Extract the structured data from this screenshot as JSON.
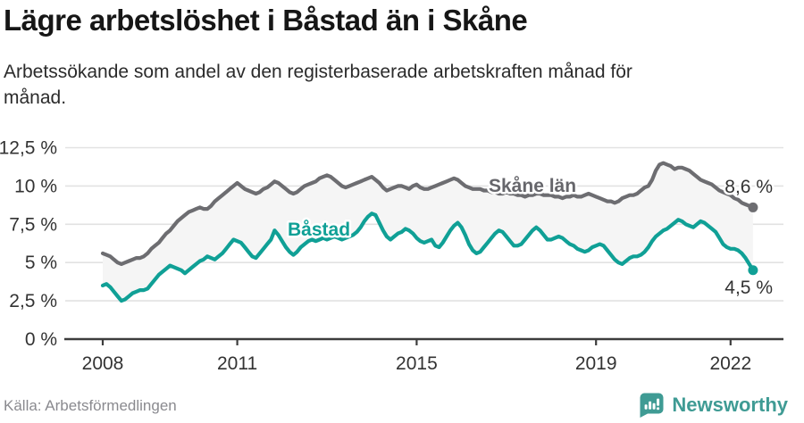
{
  "header": {
    "title": "Lägre arbetslöshet i Båstad än i Skåne",
    "subtitle": "Arbetssökande som andel av den registerbaserade arbetskraften månad för månad.",
    "subtitle_lines": [
      "Arbetssökande som andel av den registerbaserade arbetskraften månad för",
      "månad."
    ]
  },
  "footer": {
    "source": "Källa: Arbetsförmedlingen",
    "brand": "Newsworthy",
    "brand_icon": "bar-chart-speech-bubble-icon"
  },
  "colors": {
    "title_text": "#161616",
    "body_text": "#2b2b2b",
    "tick_text": "#333333",
    "grid": "#e2e2e2",
    "axis": "#3d3d3d",
    "band_fill": "#f5f5f5",
    "skane_gray": "#6d6d71",
    "bastad_teal": "#10a096",
    "end_label_text": "#333333",
    "source_text": "#8a8a8f",
    "brand_teal": "#3f9b94"
  },
  "chart_data": {
    "type": "line",
    "unit": "%",
    "frequency": "monthly",
    "x_range": {
      "start": "2008-01",
      "end": "2022-07"
    },
    "x_tick_labels": [
      "2008",
      "2011",
      "2015",
      "2019",
      "2022"
    ],
    "x_tick_years": [
      2008,
      2011,
      2015,
      2019,
      2022
    ],
    "y_tick_labels": [
      "0 %",
      "2,5 %",
      "5 %",
      "7,5 %",
      "10 %",
      "12,5 %"
    ],
    "y_tick_values": [
      0,
      2.5,
      5,
      7.5,
      10,
      12.5
    ],
    "ylim": [
      0,
      13
    ],
    "grid": "horizontal",
    "legend_position": "inline-annotations",
    "band_between_series": true,
    "series": [
      {
        "name": "Skåne län",
        "color": "#6d6d71",
        "end_value": 8.6,
        "end_label": "8,6 %",
        "values": [
          5.6,
          5.5,
          5.4,
          5.2,
          5.0,
          4.9,
          5.0,
          5.1,
          5.2,
          5.3,
          5.3,
          5.4,
          5.6,
          5.9,
          6.1,
          6.3,
          6.6,
          6.9,
          7.1,
          7.4,
          7.7,
          7.9,
          8.1,
          8.3,
          8.4,
          8.5,
          8.6,
          8.5,
          8.5,
          8.7,
          9.0,
          9.2,
          9.4,
          9.6,
          9.8,
          10.0,
          10.2,
          10.0,
          9.8,
          9.7,
          9.6,
          9.5,
          9.6,
          9.8,
          9.9,
          10.1,
          10.3,
          10.2,
          10.0,
          9.8,
          9.6,
          9.5,
          9.6,
          9.8,
          10.0,
          10.1,
          10.2,
          10.3,
          10.5,
          10.6,
          10.7,
          10.6,
          10.4,
          10.2,
          10.0,
          9.9,
          10.0,
          10.1,
          10.2,
          10.3,
          10.4,
          10.5,
          10.6,
          10.4,
          10.2,
          9.9,
          9.7,
          9.8,
          9.9,
          10.0,
          10.0,
          9.9,
          9.8,
          10.0,
          10.1,
          9.9,
          9.8,
          9.8,
          9.9,
          10.0,
          10.1,
          10.2,
          10.3,
          10.4,
          10.5,
          10.4,
          10.2,
          10.0,
          9.9,
          9.8,
          9.8,
          9.8,
          9.7,
          9.7,
          9.6,
          9.6,
          9.5,
          9.5,
          9.6,
          9.5,
          9.5,
          9.4,
          9.4,
          9.3,
          9.4,
          9.4,
          9.5,
          9.5,
          9.4,
          9.4,
          9.4,
          9.3,
          9.3,
          9.2,
          9.3,
          9.3,
          9.4,
          9.3,
          9.3,
          9.4,
          9.5,
          9.4,
          9.3,
          9.2,
          9.1,
          9.0,
          9.0,
          8.9,
          9.0,
          9.2,
          9.3,
          9.4,
          9.4,
          9.5,
          9.7,
          9.9,
          10.0,
          10.4,
          11.0,
          11.4,
          11.5,
          11.4,
          11.3,
          11.1,
          11.2,
          11.2,
          11.1,
          11.0,
          10.8,
          10.6,
          10.4,
          10.3,
          10.2,
          10.1,
          9.9,
          9.7,
          9.6,
          9.5,
          9.4,
          9.2,
          9.1,
          8.9,
          8.8,
          8.7,
          8.6
        ]
      },
      {
        "name": "Båstad",
        "color": "#10a096",
        "end_value": 4.5,
        "end_label": "4,5 %",
        "values": [
          3.5,
          3.6,
          3.4,
          3.1,
          2.8,
          2.5,
          2.6,
          2.8,
          3.0,
          3.1,
          3.2,
          3.2,
          3.3,
          3.6,
          3.9,
          4.2,
          4.4,
          4.6,
          4.8,
          4.7,
          4.6,
          4.5,
          4.3,
          4.5,
          4.7,
          4.9,
          5.1,
          5.2,
          5.4,
          5.3,
          5.2,
          5.4,
          5.6,
          5.9,
          6.2,
          6.5,
          6.4,
          6.3,
          6.0,
          5.7,
          5.4,
          5.3,
          5.6,
          5.9,
          6.2,
          6.5,
          7.1,
          6.8,
          6.4,
          6.0,
          5.7,
          5.5,
          5.7,
          6.0,
          6.2,
          6.4,
          6.5,
          6.4,
          6.5,
          6.6,
          6.5,
          6.6,
          6.7,
          6.6,
          6.5,
          6.6,
          6.7,
          6.8,
          7.0,
          7.3,
          7.7,
          8.0,
          8.2,
          8.1,
          7.6,
          7.1,
          6.7,
          6.5,
          6.7,
          6.9,
          7.0,
          7.2,
          7.1,
          6.9,
          6.6,
          6.4,
          6.3,
          6.4,
          6.5,
          6.1,
          6.0,
          6.3,
          6.7,
          7.1,
          7.4,
          7.6,
          7.3,
          6.8,
          6.2,
          5.8,
          5.6,
          5.7,
          6.0,
          6.3,
          6.6,
          6.9,
          7.1,
          7.0,
          6.7,
          6.4,
          6.1,
          6.1,
          6.2,
          6.5,
          6.8,
          7.1,
          7.3,
          7.1,
          6.8,
          6.5,
          6.5,
          6.6,
          6.7,
          6.6,
          6.4,
          6.2,
          6.1,
          5.9,
          5.8,
          5.7,
          5.8,
          6.0,
          6.1,
          6.2,
          6.1,
          5.8,
          5.5,
          5.2,
          5.0,
          4.9,
          5.1,
          5.3,
          5.4,
          5.4,
          5.5,
          5.7,
          6.0,
          6.4,
          6.7,
          6.9,
          7.1,
          7.2,
          7.4,
          7.6,
          7.8,
          7.7,
          7.5,
          7.4,
          7.3,
          7.5,
          7.7,
          7.6,
          7.4,
          7.2,
          7.0,
          6.6,
          6.2,
          6.0,
          5.9,
          5.9,
          5.8,
          5.6,
          5.3,
          4.9,
          4.5
        ]
      }
    ]
  }
}
